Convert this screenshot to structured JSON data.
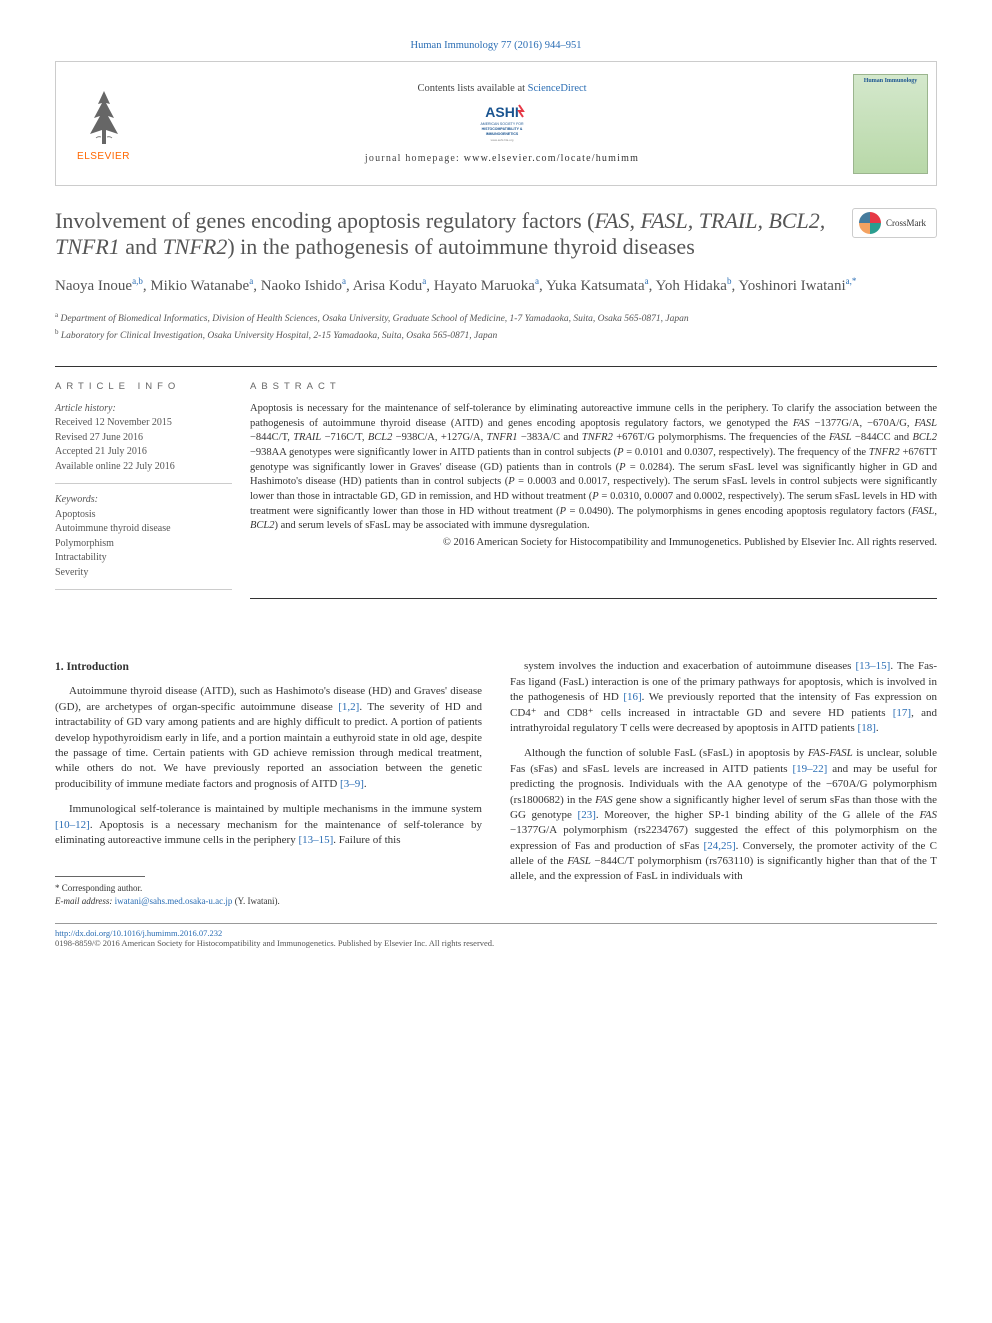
{
  "journal_ref": "Human Immunology 77 (2016) 944–951",
  "header": {
    "contents_prefix": "Contents lists available at ",
    "contents_link": "ScienceDirect",
    "elsevier": "ELSEVIER",
    "homepage_prefix": "journal homepage: ",
    "homepage_link": "www.elsevier.com/locate/humimm",
    "journal_cover_title": "Human Immunology"
  },
  "title_parts": {
    "pre": "Involvement of genes encoding apoptosis regulatory factors (",
    "genes": "FAS, FASL, TRAIL, BCL2, TNFR1",
    "and": " and ",
    "gene2": "TNFR2",
    "post": ") in the pathogenesis of autoimmune thyroid diseases"
  },
  "crossmark": "CrossMark",
  "authors": [
    {
      "name": "Naoya Inoue",
      "sup": "a,b"
    },
    {
      "name": "Mikio Watanabe",
      "sup": "a"
    },
    {
      "name": "Naoko Ishido",
      "sup": "a"
    },
    {
      "name": "Arisa Kodu",
      "sup": "a"
    },
    {
      "name": "Hayato Maruoka",
      "sup": "a"
    },
    {
      "name": "Yuka Katsumata",
      "sup": "a"
    },
    {
      "name": "Yoh Hidaka",
      "sup": "b"
    },
    {
      "name": "Yoshinori Iwatani",
      "sup": "a,*"
    }
  ],
  "affiliations": [
    {
      "sup": "a",
      "text": "Department of Biomedical Informatics, Division of Health Sciences, Osaka University, Graduate School of Medicine, 1-7 Yamadaoka, Suita, Osaka 565-0871, Japan"
    },
    {
      "sup": "b",
      "text": "Laboratory for Clinical Investigation, Osaka University Hospital, 2-15 Yamadaoka, Suita, Osaka 565-0871, Japan"
    }
  ],
  "article_info": {
    "heading": "article info",
    "history_label": "Article history:",
    "history": [
      "Received 12 November 2015",
      "Revised 27 June 2016",
      "Accepted 21 July 2016",
      "Available online 22 July 2016"
    ],
    "keywords_label": "Keywords:",
    "keywords": [
      "Apoptosis",
      "Autoimmune thyroid disease",
      "Polymorphism",
      "Intractability",
      "Severity"
    ]
  },
  "abstract": {
    "heading": "abstract",
    "text": "Apoptosis is necessary for the maintenance of self-tolerance by eliminating autoreactive immune cells in the periphery. To clarify the association between the pathogenesis of autoimmune thyroid disease (AITD) and genes encoding apoptosis regulatory factors, we genotyped the FAS −1377G/A, −670A/G, FASL −844C/T, TRAIL −716C/T, BCL2 −938C/A, +127G/A, TNFR1 −383A/C and TNFR2 +676T/G polymorphisms. The frequencies of the FASL −844CC and BCL2 −938AA genotypes were significantly lower in AITD patients than in control subjects (P = 0.0101 and 0.0307, respectively). The frequency of the TNFR2 +676TT genotype was significantly lower in Graves' disease (GD) patients than in controls (P = 0.0284). The serum sFasL level was significantly higher in GD and Hashimoto's disease (HD) patients than in control subjects (P = 0.0003 and 0.0017, respectively). The serum sFasL levels in control subjects were significantly lower than those in intractable GD, GD in remission, and HD without treatment (P = 0.0310, 0.0007 and 0.0002, respectively). The serum sFasL levels in HD with treatment were significantly lower than those in HD without treatment (P = 0.0490). The polymorphisms in genes encoding apoptosis regulatory factors (FASL, BCL2) and serum levels of sFasL may be associated with immune dysregulation.",
    "copyright": "© 2016 American Society for Histocompatibility and Immunogenetics. Published by Elsevier Inc. All rights reserved."
  },
  "body": {
    "heading": "1. Introduction",
    "col1": {
      "p1": "Autoimmune thyroid disease (AITD), such as Hashimoto's disease (HD) and Graves' disease (GD), are archetypes of organ-specific autoimmune disease [1,2]. The severity of HD and intractability of GD vary among patients and are highly difficult to predict. A portion of patients develop hypothyroidism early in life, and a portion maintain a euthyroid state in old age, despite the passage of time. Certain patients with GD achieve remission through medical treatment, while others do not. We have previously reported an association between the genetic producibility of immune mediate factors and prognosis of AITD [3–9].",
      "p2": "Immunological self-tolerance is maintained by multiple mechanisms in the immune system [10–12]. Apoptosis is a necessary mechanism for the maintenance of self-tolerance by eliminating autoreactive immune cells in the periphery [13–15]. Failure of this"
    },
    "col2": {
      "p1": "system involves the induction and exacerbation of autoimmune diseases [13–15]. The Fas-Fas ligand (FasL) interaction is one of the primary pathways for apoptosis, which is involved in the pathogenesis of HD [16]. We previously reported that the intensity of Fas expression on CD4⁺ and CD8⁺ cells increased in intractable GD and severe HD patients [17], and intrathyroidal regulatory T cells were decreased by apoptosis in AITD patients [18].",
      "p2": "Although the function of soluble FasL (sFasL) in apoptosis by FAS-FASL is unclear, soluble Fas (sFas) and sFasL levels are increased in AITD patients [19–22] and may be useful for predicting the prognosis. Individuals with the AA genotype of the −670A/G polymorphism (rs1800682) in the FAS gene show a significantly higher level of serum sFas than those with the GG genotype [23]. Moreover, the higher SP-1 binding ability of the G allele of the FAS −1377G/A polymorphism (rs2234767) suggested the effect of this polymorphism on the expression of Fas and production of sFas [24,25]. Conversely, the promoter activity of the C allele of the FASL −844C/T polymorphism (rs763110) is significantly higher than that of the T allele, and the expression of FasL in individuals with"
    }
  },
  "footnotes": {
    "corr_label": "* Corresponding author.",
    "email_label": "E-mail address: ",
    "email": "iwatani@sahs.med.osaka-u.ac.jp",
    "email_name": " (Y. Iwatani)."
  },
  "footer": {
    "doi": "http://dx.doi.org/10.1016/j.humimm.2016.07.232",
    "issn": "0198-8859/© 2016 American Society for Histocompatibility and Immunogenetics. Published by Elsevier Inc. All rights reserved."
  },
  "colors": {
    "link": "#2a6db4",
    "elsevier_orange": "#ff6600",
    "text": "#333333",
    "muted": "#555555"
  }
}
